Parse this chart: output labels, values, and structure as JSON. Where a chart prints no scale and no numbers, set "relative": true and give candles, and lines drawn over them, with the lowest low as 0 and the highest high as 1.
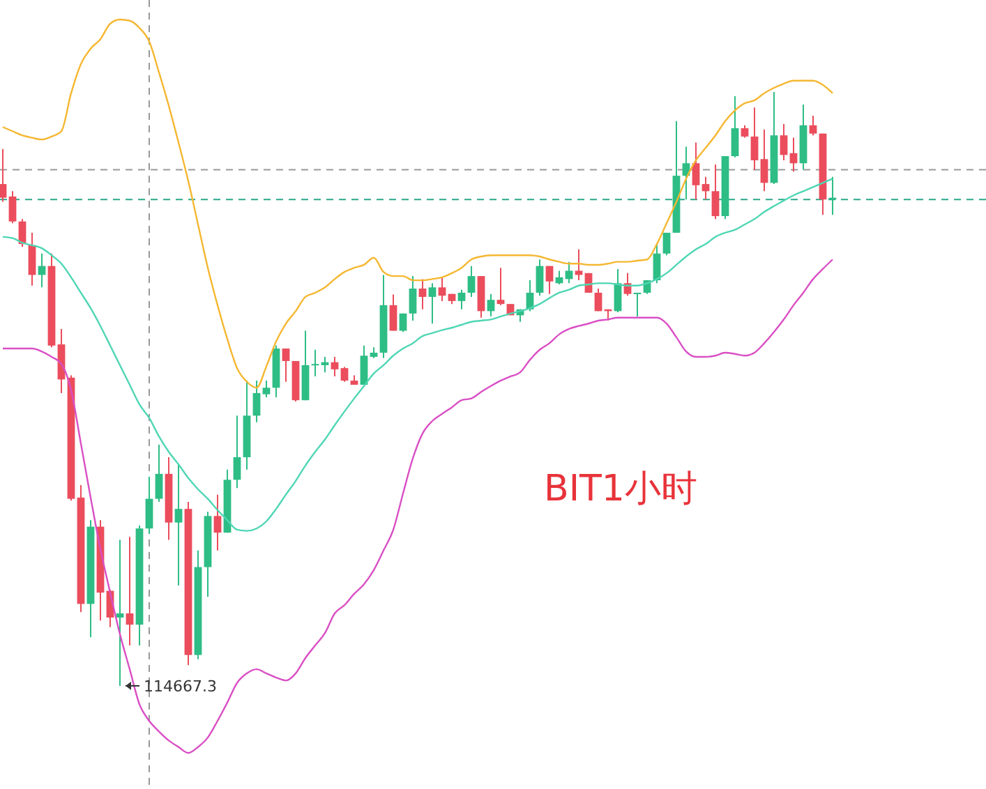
{
  "chart_data": {
    "type": "candlestick",
    "title": "BIT1小时",
    "relative": true,
    "categories": [
      null,
      null,
      null,
      null,
      null,
      null,
      null,
      null,
      null,
      null,
      null,
      null,
      null,
      null,
      null,
      null,
      null,
      null,
      null,
      null,
      null,
      null,
      null,
      null,
      null,
      null,
      null,
      null,
      null,
      null,
      null,
      null,
      null,
      null,
      null,
      null,
      null,
      null,
      null,
      null,
      null,
      null,
      null,
      null,
      null,
      null,
      null,
      null,
      null,
      null,
      null,
      null,
      null,
      null,
      null,
      null,
      null,
      null,
      null,
      null,
      null,
      null,
      null,
      null,
      null,
      null,
      null,
      null,
      null,
      null,
      null,
      null,
      null,
      null,
      null,
      null,
      null,
      null,
      null,
      null,
      null,
      null,
      null,
      null,
      null,
      null
    ],
    "ohlc": [
      [
        0.845,
        0.904,
        0.815,
        0.822
      ],
      [
        0.824,
        0.833,
        0.779,
        0.782
      ],
      [
        0.782,
        0.786,
        0.739,
        0.744
      ],
      [
        0.742,
        0.763,
        0.674,
        0.692
      ],
      [
        0.692,
        0.728,
        0.671,
        0.707
      ],
      [
        0.707,
        0.728,
        0.57,
        0.573
      ],
      [
        0.575,
        0.601,
        0.493,
        0.516
      ],
      [
        0.519,
        0.523,
        0.312,
        0.315
      ],
      [
        0.317,
        0.338,
        0.124,
        0.138
      ],
      [
        0.138,
        0.279,
        0.082,
        0.268
      ],
      [
        0.268,
        0.279,
        0.11,
        0.157
      ],
      [
        0.16,
        0.162,
        0.099,
        0.115
      ],
      [
        0.115,
        0.246,
        0,
        0.122
      ],
      [
        0.122,
        0.251,
        0.068,
        0.103
      ],
      [
        0.103,
        0.27,
        0.068,
        0.265
      ],
      [
        0.265,
        0.352,
        0.256,
        0.315
      ],
      [
        0.315,
        0.406,
        0.31,
        0.357
      ],
      [
        0.357,
        0.385,
        0.246,
        0.275
      ],
      [
        0.275,
        0.373,
        0.169,
        0.298
      ],
      [
        0.298,
        0.31,
        0.035,
        0.052
      ],
      [
        0.052,
        0.228,
        0.045,
        0.2
      ],
      [
        0.2,
        0.293,
        0.15,
        0.286
      ],
      [
        0.286,
        0.322,
        0.228,
        0.258
      ],
      [
        0.258,
        0.364,
        0.258,
        0.347
      ],
      [
        0.347,
        0.455,
        0.333,
        0.385
      ],
      [
        0.385,
        0.514,
        0.364,
        0.455
      ],
      [
        0.455,
        0.514,
        0.444,
        0.493
      ],
      [
        0.491,
        0.514,
        0.486,
        0.502
      ],
      [
        0.502,
        0.573,
        0.486,
        0.568
      ],
      [
        0.568,
        0.568,
        0.512,
        0.547
      ],
      [
        0.547,
        0.547,
        0.479,
        0.481
      ],
      [
        0.481,
        0.598,
        0.481,
        0.54
      ],
      [
        0.54,
        0.566,
        0.521,
        0.542
      ],
      [
        0.54,
        0.554,
        0.528,
        0.545
      ],
      [
        0.545,
        0.554,
        0.521,
        0.533
      ],
      [
        0.535,
        0.537,
        0.512,
        0.514
      ],
      [
        0.514,
        0.523,
        0.507,
        0.507
      ],
      [
        0.507,
        0.573,
        0.507,
        0.556
      ],
      [
        0.554,
        0.57,
        0.552,
        0.561
      ],
      [
        0.561,
        0.692,
        0.552,
        0.641
      ],
      [
        0.641,
        0.659,
        0.598,
        0.598
      ],
      [
        0.598,
        0.627,
        0.596,
        0.627
      ],
      [
        0.627,
        0.69,
        0.615,
        0.669
      ],
      [
        0.669,
        0.685,
        0.634,
        0.655
      ],
      [
        0.655,
        0.678,
        0.61,
        0.671
      ],
      [
        0.671,
        0.688,
        0.648,
        0.657
      ],
      [
        0.66,
        0.66,
        0.643,
        0.648
      ],
      [
        0.648,
        0.667,
        0.634,
        0.662
      ],
      [
        0.662,
        0.707,
        0.655,
        0.69
      ],
      [
        0.69,
        0.69,
        0.62,
        0.631
      ],
      [
        0.631,
        0.66,
        0.622,
        0.65
      ],
      [
        0.65,
        0.704,
        0.641,
        0.643
      ],
      [
        0.643,
        0.643,
        0.624,
        0.624
      ],
      [
        0.624,
        0.634,
        0.613,
        0.634
      ],
      [
        0.634,
        0.683,
        0.631,
        0.662
      ],
      [
        0.662,
        0.718,
        0.657,
        0.707
      ],
      [
        0.707,
        0.707,
        0.66,
        0.681
      ],
      [
        0.678,
        0.699,
        0.676,
        0.688
      ],
      [
        0.685,
        0.714,
        0.678,
        0.699
      ],
      [
        0.699,
        0.735,
        0.683,
        0.692
      ],
      [
        0.695,
        0.695,
        0.662,
        0.662
      ],
      [
        0.662,
        0.669,
        0.631,
        0.631
      ],
      [
        0.634,
        0.634,
        0.615,
        0.631
      ],
      [
        0.631,
        0.702,
        0.629,
        0.678
      ],
      [
        0.678,
        0.695,
        0.657,
        0.66
      ],
      [
        0.66,
        0.662,
        0.622,
        0.662
      ],
      [
        0.662,
        0.683,
        0.66,
        0.683
      ],
      [
        0.683,
        0.744,
        0.678,
        0.728
      ],
      [
        0.728,
        0.763,
        0.725,
        0.763
      ],
      [
        0.763,
        0.951,
        0.763,
        0.859
      ],
      [
        0.859,
        0.908,
        0.819,
        0.88
      ],
      [
        0.88,
        0.915,
        0.819,
        0.843
      ],
      [
        0.845,
        0.857,
        0.819,
        0.833
      ],
      [
        0.833,
        0.878,
        0.786,
        0.791
      ],
      [
        0.791,
        0.892,
        0.786,
        0.892
      ],
      [
        0.892,
        0.993,
        0.89,
        0.939
      ],
      [
        0.939,
        0.944,
        0.923,
        0.925
      ],
      [
        0.925,
        0.974,
        0.869,
        0.885
      ],
      [
        0.887,
        0.937,
        0.833,
        0.847
      ],
      [
        0.847,
        1,
        0.845,
        0.927
      ],
      [
        0.927,
        0.946,
        0.885,
        0.894
      ],
      [
        0.897,
        0.923,
        0.866,
        0.88
      ],
      [
        0.88,
        0.979,
        0.869,
        0.944
      ],
      [
        0.944,
        0.96,
        0.927,
        0.93
      ],
      [
        0.93,
        0.93,
        0.793,
        0.819
      ],
      [
        0.819,
        0.857,
        0.793,
        0.822
      ]
    ],
    "series": [
      {
        "type": "line",
        "color": "#f5b731",
        "values": [
          0.941,
          0.934,
          0.927,
          0.923,
          0.92,
          0.925,
          0.934,
          0.998,
          1.047,
          1.073,
          1.089,
          1.115,
          1.122,
          1.12,
          1.108,
          1.085,
          1.033,
          0.977,
          0.915,
          0.85,
          0.777,
          0.704,
          0.641,
          0.584,
          0.535,
          0.512,
          0.502,
          0.538,
          0.58,
          0.61,
          0.631,
          0.655,
          0.662,
          0.671,
          0.685,
          0.697,
          0.704,
          0.709,
          0.721,
          0.697,
          0.69,
          0.69,
          0.683,
          0.683,
          0.685,
          0.688,
          0.695,
          0.704,
          0.718,
          0.723,
          0.725,
          0.725,
          0.725,
          0.725,
          0.725,
          0.723,
          0.718,
          0.714,
          0.711,
          0.711,
          0.709,
          0.709,
          0.711,
          0.714,
          0.714,
          0.716,
          0.718,
          0.744,
          0.779,
          0.815,
          0.854,
          0.885,
          0.906,
          0.927,
          0.951,
          0.969,
          0.981,
          0.986,
          0.998,
          1.007,
          1.014,
          1.019,
          1.019,
          1.019,
          1.012,
          0.998
        ]
      },
      {
        "type": "line",
        "color": "#4fd6b4",
        "values": [
          0.756,
          0.754,
          0.746,
          0.742,
          0.737,
          0.725,
          0.711,
          0.688,
          0.662,
          0.636,
          0.606,
          0.573,
          0.54,
          0.507,
          0.474,
          0.451,
          0.42,
          0.394,
          0.373,
          0.35,
          0.331,
          0.315,
          0.296,
          0.279,
          0.263,
          0.261,
          0.265,
          0.277,
          0.298,
          0.322,
          0.345,
          0.371,
          0.394,
          0.415,
          0.439,
          0.462,
          0.484,
          0.505,
          0.526,
          0.54,
          0.556,
          0.568,
          0.577,
          0.589,
          0.594,
          0.599,
          0.603,
          0.608,
          0.613,
          0.615,
          0.617,
          0.622,
          0.627,
          0.631,
          0.636,
          0.643,
          0.653,
          0.662,
          0.667,
          0.674,
          0.676,
          0.678,
          0.678,
          0.676,
          0.674,
          0.674,
          0.678,
          0.685,
          0.695,
          0.709,
          0.723,
          0.735,
          0.744,
          0.756,
          0.763,
          0.768,
          0.777,
          0.786,
          0.798,
          0.808,
          0.817,
          0.826,
          0.833,
          0.84,
          0.847,
          0.854
        ]
      },
      {
        "type": "line",
        "color": "#d94fc4",
        "values": [
          0.568,
          0.568,
          0.568,
          0.568,
          0.563,
          0.554,
          0.542,
          0.498,
          0.408,
          0.317,
          0.23,
          0.157,
          0.087,
          0.028,
          -0.031,
          -0.059,
          -0.077,
          -0.092,
          -0.103,
          -0.113,
          -0.103,
          -0.087,
          -0.059,
          -0.028,
          0.005,
          0.021,
          0.028,
          0.021,
          0.014,
          0.009,
          0.021,
          0.047,
          0.068,
          0.089,
          0.122,
          0.136,
          0.155,
          0.171,
          0.195,
          0.228,
          0.263,
          0.324,
          0.383,
          0.425,
          0.446,
          0.458,
          0.469,
          0.481,
          0.484,
          0.495,
          0.505,
          0.514,
          0.521,
          0.528,
          0.549,
          0.566,
          0.577,
          0.592,
          0.601,
          0.606,
          0.61,
          0.615,
          0.617,
          0.62,
          0.62,
          0.62,
          0.62,
          0.62,
          0.61,
          0.587,
          0.563,
          0.554,
          0.554,
          0.556,
          0.561,
          0.559,
          0.556,
          0.561,
          0.577,
          0.596,
          0.617,
          0.641,
          0.662,
          0.685,
          0.702,
          0.718
        ]
      }
    ],
    "ref_lines": [
      {
        "axis": "y",
        "value": 0.869,
        "color": "#999999",
        "line_style": "dashed"
      },
      {
        "axis": "y",
        "value": 0.819,
        "color": "#2aa88a",
        "line_style": "dashed"
      }
    ],
    "annotations": [
      "114667.3"
    ]
  }
}
